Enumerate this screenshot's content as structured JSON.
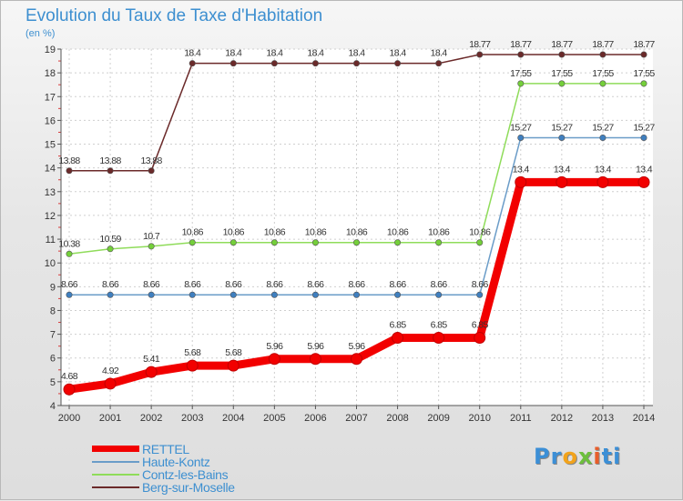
{
  "chart_data": {
    "type": "line",
    "title": "Evolution du Taux de Taxe d'Habitation",
    "ylabel": "(en %)",
    "xlabel": "",
    "ylim": [
      4,
      19
    ],
    "yticks": [
      4,
      5,
      6,
      7,
      8,
      9,
      10,
      11,
      12,
      13,
      14,
      15,
      16,
      17,
      18,
      19
    ],
    "categories": [
      "2000",
      "2001",
      "2002",
      "2003",
      "2004",
      "2005",
      "2006",
      "2007",
      "2008",
      "2009",
      "2010",
      "2011",
      "2012",
      "2013",
      "2014"
    ],
    "series": [
      {
        "name": "Berg-sur-Moselle",
        "color": "#6b2a2a",
        "values": [
          13.88,
          13.88,
          13.88,
          18.4,
          18.4,
          18.4,
          18.4,
          18.4,
          18.4,
          18.4,
          18.77,
          18.77,
          18.77,
          18.77,
          18.77
        ],
        "labels": [
          "13.88",
          "13.88",
          "13.88",
          "18.4",
          "18.4",
          "18.4",
          "18.4",
          "18.4",
          "18.4",
          "18.4",
          "18.77",
          "18.77",
          "18.77",
          "18.77",
          "18.77"
        ]
      },
      {
        "name": "Contz-les-Bains",
        "color": "#8fdc5a",
        "values": [
          10.38,
          10.59,
          10.7,
          10.86,
          10.86,
          10.86,
          10.86,
          10.86,
          10.86,
          10.86,
          10.86,
          17.55,
          17.55,
          17.55,
          17.55
        ],
        "labels": [
          "10.38",
          "10.59",
          "10.7",
          "10.86",
          "10.86",
          "10.86",
          "10.86",
          "10.86",
          "10.86",
          "10.86",
          "10.86",
          "17.55",
          "17.55",
          "17.55",
          "17.55"
        ]
      },
      {
        "name": "Haute-Kontz",
        "color": "#6a9cc8",
        "values": [
          8.66,
          8.66,
          8.66,
          8.66,
          8.66,
          8.66,
          8.66,
          8.66,
          8.66,
          8.66,
          8.66,
          15.27,
          15.27,
          15.27,
          15.27
        ],
        "labels": [
          "8.66",
          "8.66",
          "8.66",
          "8.66",
          "8.66",
          "8.66",
          "8.66",
          "8.66",
          "8.66",
          "8.66",
          "8.66",
          "15.27",
          "15.27",
          "15.27",
          "15.27"
        ]
      },
      {
        "name": "RETTEL",
        "color": "#f20000",
        "values": [
          4.68,
          4.92,
          5.41,
          5.68,
          5.68,
          5.96,
          5.96,
          5.96,
          6.85,
          6.85,
          6.85,
          13.4,
          13.4,
          13.4,
          13.4
        ],
        "labels": [
          "4.68",
          "4.92",
          "5.41",
          "5.68",
          "5.68",
          "5.96",
          "5.96",
          "5.96",
          "6.85",
          "6.85",
          "6.85",
          "13.4",
          "13.4",
          "13.4",
          "13.4"
        ]
      }
    ],
    "legend": [
      "RETTEL",
      "Haute-Kontz",
      "Contz-les-Bains",
      "Berg-sur-Moselle"
    ]
  },
  "logo": {
    "p1": "Pr",
    "p2": "o",
    "p3": "x",
    "p4": "i",
    "p5": "ti"
  }
}
